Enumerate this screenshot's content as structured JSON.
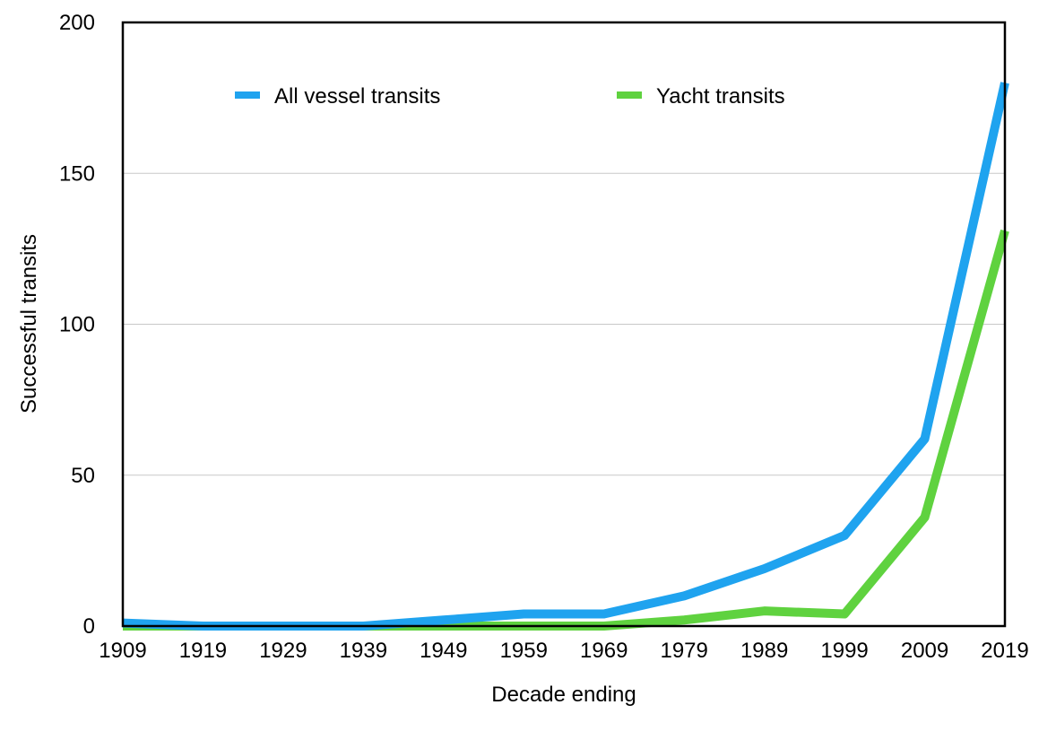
{
  "chart_data": {
    "type": "line",
    "title": "",
    "xlabel": "Decade ending",
    "ylabel": "Successful transits",
    "categories": [
      "1909",
      "1919",
      "1929",
      "1939",
      "1949",
      "1959",
      "1969",
      "1979",
      "1989",
      "1999",
      "2009",
      "2019"
    ],
    "ylim": [
      0,
      200
    ],
    "yticks": [
      "0",
      "50",
      "100",
      "150",
      "200"
    ],
    "grid": "horizontal",
    "legend_position": "top",
    "series": [
      {
        "name": "All vessel transits",
        "color": "#1fa3ef",
        "values": [
          1,
          0,
          0,
          0,
          2,
          4,
          4,
          10,
          19,
          30,
          62,
          180
        ]
      },
      {
        "name": "Yacht transits",
        "color": "#5fd23f",
        "values": [
          0,
          0,
          0,
          0,
          0,
          0,
          0,
          2,
          5,
          4,
          36,
          131
        ]
      }
    ]
  }
}
